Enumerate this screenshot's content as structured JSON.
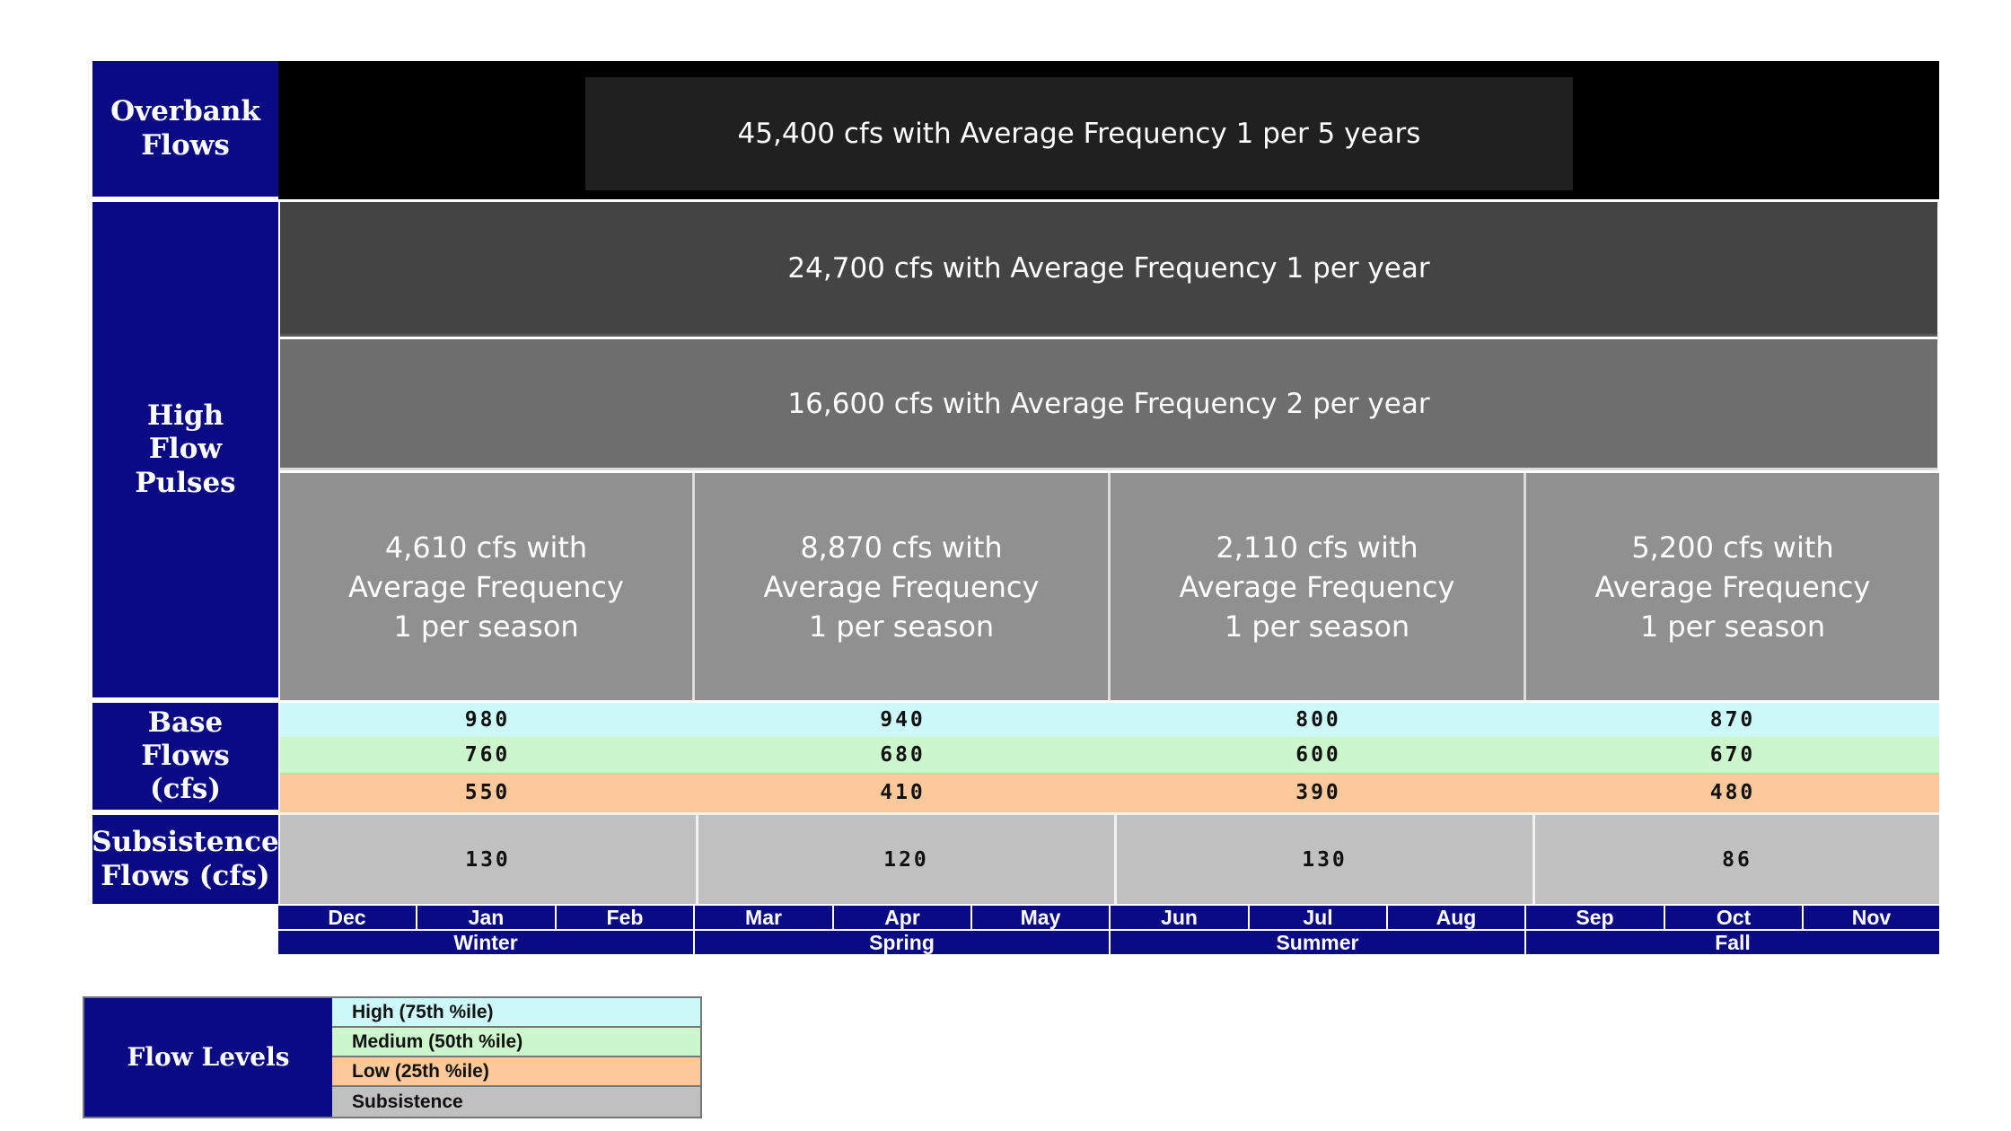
{
  "colors": {
    "header_navy": "#0a0a85",
    "overbank_band": "#000000",
    "overbank_inner": "#202020",
    "pulse_band_1": "#444444",
    "pulse_band_2": "#6e6e6e",
    "seasonal_pulse": "#909090",
    "base_high": "#ccf8f8",
    "base_medium": "#ccf6cc",
    "base_low": "#fdc99b",
    "subsistence": "#c0c0c0"
  },
  "chart_data": {
    "type": "table",
    "row_headers": {
      "overbank": "Overbank Flows",
      "high_flow": "High Flow Pulses",
      "base": "Base Flows (cfs)",
      "subsistence": "Subsistence Flows (cfs)"
    },
    "overbank_flow": "45,400 cfs with Average Frequency 1 per 5 years",
    "annual_pulses": [
      "24,700 cfs with Average Frequency 1 per year",
      "16,600 cfs with Average Frequency 2 per year"
    ],
    "seasonal_pulses": [
      {
        "season": "Winter",
        "lines": [
          "4,610 cfs with",
          "Average Frequency",
          "1 per season"
        ],
        "cfs": 4610
      },
      {
        "season": "Spring",
        "lines": [
          "8,870 cfs with",
          "Average Frequency",
          "1 per season"
        ],
        "cfs": 8870
      },
      {
        "season": "Summer",
        "lines": [
          "2,110 cfs with",
          "Average Frequency",
          "1 per season"
        ],
        "cfs": 2110
      },
      {
        "season": "Fall",
        "lines": [
          "5,200 cfs with",
          "Average Frequency",
          "1 per season"
        ],
        "cfs": 5200
      }
    ],
    "seasons": [
      "Winter",
      "Spring",
      "Summer",
      "Fall"
    ],
    "months": [
      "Dec",
      "Jan",
      "Feb",
      "Mar",
      "Apr",
      "May",
      "Jun",
      "Jul",
      "Aug",
      "Sep",
      "Oct",
      "Nov"
    ],
    "base_flows": {
      "high": [
        "980",
        "940",
        "800",
        "870"
      ],
      "medium": [
        "760",
        "680",
        "600",
        "670"
      ],
      "low": [
        "550",
        "410",
        "390",
        "480"
      ]
    },
    "subsistence_flows": [
      "130",
      "120",
      "130",
      "86"
    ]
  },
  "legend": {
    "title": "Flow Levels",
    "items": [
      {
        "label": "High (75th %ile)",
        "color": "#ccf8f8"
      },
      {
        "label": "Medium (50th %ile)",
        "color": "#ccf6cc"
      },
      {
        "label": "Low (25th %ile)",
        "color": "#fdc99b"
      },
      {
        "label": "Subsistence",
        "color": "#c0c0c0"
      }
    ]
  }
}
